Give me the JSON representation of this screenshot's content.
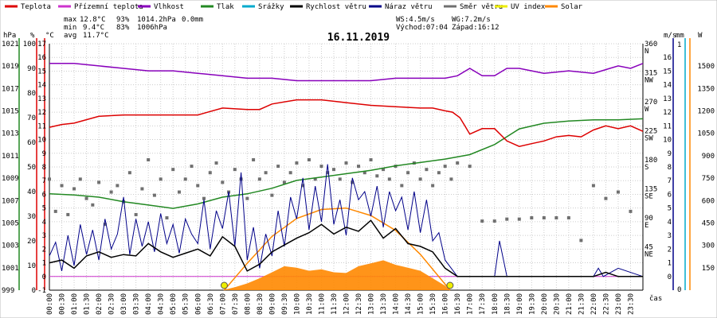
{
  "chart_data": {
    "type": "line",
    "title": "16.11.2019",
    "legend": {
      "placement": "top",
      "items": [
        {
          "label": "Teplota",
          "color": "#dd0000"
        },
        {
          "label": "Přízemní teplota",
          "color": "#cc33cc"
        },
        {
          "label": "Vlhkost",
          "color": "#8800bb"
        },
        {
          "label": "Tlak",
          "color": "#228822"
        },
        {
          "label": "Srážky",
          "color": "#00aacc"
        },
        {
          "label": "Rychlost větru",
          "color": "#000000"
        },
        {
          "label": "Náraz větru",
          "color": "#000088"
        },
        {
          "label": "Směr větru",
          "color": "#707070"
        },
        {
          "label": "UV index",
          "color": "#eeee00"
        },
        {
          "label": "Solar",
          "color": "#ff8800"
        }
      ]
    },
    "stats": {
      "max": {
        "label": "max",
        "temp": "12.8°C",
        "hum": "93%",
        "press": "1014.2hPa",
        "rain": "0.0mm"
      },
      "min": {
        "label": "min",
        "temp": "9.4°C",
        "hum": "83%",
        "press": "1006hPa"
      },
      "avg": {
        "label": "avg",
        "temp": "11.7°C"
      },
      "ws": "WS:4.5m/s",
      "wg": "WG:7.2m/s",
      "sunrise": "Východ:07:04",
      "sunset": "Západ:16:12"
    },
    "axes": {
      "hpa": {
        "unit": "hPa",
        "ticks": [
          "1021",
          "1019",
          "1017",
          "1015",
          "1013",
          "1011",
          "1009",
          "1007",
          "1005",
          "1003",
          "1001",
          "999"
        ]
      },
      "pct": {
        "unit": "%",
        "ticks": [
          "100",
          "90",
          "80",
          "70",
          "60",
          "50",
          "40",
          "30",
          "20",
          "10",
          "0"
        ]
      },
      "degc": {
        "unit": "°C",
        "ticks": [
          "17",
          "16",
          "15",
          "14",
          "13",
          "12",
          "11",
          "10",
          "9",
          "8",
          "7",
          "6",
          "5",
          "4",
          "3",
          "2",
          "1",
          "0",
          "-1"
        ]
      },
      "dir": {
        "ticks": [
          "360",
          "315",
          "270",
          "225",
          "180",
          "135",
          "90",
          "45"
        ],
        "cardinal": [
          "N",
          "NW",
          "W",
          "SW",
          "S",
          "SE",
          "E",
          "NE"
        ]
      },
      "ms": {
        "unit": "m/s",
        "ticks": [
          "16",
          "15",
          "14",
          "13",
          "12",
          "11",
          "10",
          "9",
          "8",
          "7",
          "6",
          "5",
          "4",
          "3",
          "2",
          "1",
          "0"
        ]
      },
      "mm": {
        "unit": "mm",
        "ticks": [
          "1",
          "0"
        ]
      },
      "watt": {
        "unit": "W",
        "ticks": [
          "1500",
          "1350",
          "1200",
          "1050",
          "900",
          "750",
          "600",
          "450",
          "300",
          "150"
        ]
      },
      "time": {
        "unit": "čas",
        "ticks": [
          "00:00",
          "00:30",
          "01:00",
          "01:30",
          "02:00",
          "02:30",
          "03:00",
          "03:30",
          "04:00",
          "04:30",
          "05:00",
          "05:30",
          "06:00",
          "06:30",
          "07:00",
          "07:30",
          "08:00",
          "08:30",
          "09:00",
          "09:30",
          "10:00",
          "10:30",
          "11:00",
          "11:30",
          "12:00",
          "12:30",
          "13:00",
          "13:30",
          "14:00",
          "14:30",
          "15:00",
          "15:30",
          "16:00",
          "16:30",
          "17:00",
          "17:30",
          "18:00",
          "18:30",
          "19:00",
          "19:30",
          "20:00",
          "20:30",
          "21:00",
          "21:30",
          "22:00",
          "22:30",
          "23:00",
          "23:30"
        ]
      }
    },
    "x_range_hours": [
      0,
      24
    ],
    "series": [
      {
        "name": "Teplota",
        "unit": "°C",
        "x": [
          0,
          0.5,
          1,
          2,
          3,
          4,
          5,
          6,
          7,
          8,
          8.5,
          9,
          10,
          11,
          12,
          13,
          14,
          15,
          15.5,
          16,
          16.3,
          16.6,
          16.8,
          17,
          17.5,
          18,
          18.5,
          19,
          19.5,
          20,
          20.5,
          21,
          21.5,
          22,
          22.5,
          23,
          23.5,
          24
        ],
        "values": [
          10.9,
          11.1,
          11.2,
          11.7,
          11.8,
          11.8,
          11.8,
          11.8,
          12.3,
          12.2,
          12.2,
          12.6,
          12.9,
          12.9,
          12.7,
          12.5,
          12.4,
          12.3,
          12.3,
          12.1,
          12.0,
          11.6,
          11.0,
          10.4,
          10.8,
          10.8,
          9.9,
          9.5,
          9.7,
          9.9,
          10.2,
          10.3,
          10.2,
          10.7,
          11.0,
          10.8,
          11.0,
          10.6
        ]
      },
      {
        "name": "Vlhkost",
        "unit": "%",
        "x": [
          0,
          1,
          2,
          3,
          4,
          5,
          6,
          7,
          8,
          9,
          10,
          11,
          12,
          13,
          14,
          15,
          16,
          16.5,
          17,
          17.5,
          18,
          18.5,
          19,
          19.5,
          20,
          21,
          22,
          23,
          23.5,
          24
        ],
        "values": [
          92,
          92,
          91,
          90,
          89,
          89,
          88,
          87,
          86,
          86,
          85,
          85,
          85,
          85,
          86,
          86,
          86,
          87,
          90,
          87,
          87,
          90,
          90,
          89,
          88,
          89,
          88,
          91,
          90,
          92
        ]
      },
      {
        "name": "Tlak",
        "unit": "hPa",
        "x": [
          0,
          1,
          2,
          3,
          4,
          5,
          6,
          7,
          8,
          9,
          10,
          11,
          12,
          13,
          14,
          15,
          16,
          17,
          18,
          19,
          20,
          21,
          22,
          23,
          24
        ],
        "values": [
          1007.6,
          1007.5,
          1007.3,
          1006.9,
          1006.6,
          1006.3,
          1006.7,
          1007.3,
          1007.6,
          1008.1,
          1008.8,
          1009.1,
          1009.4,
          1009.7,
          1010.1,
          1010.4,
          1010.7,
          1011.1,
          1012.0,
          1013.4,
          1013.9,
          1014.1,
          1014.2,
          1014.2,
          1014.3
        ]
      },
      {
        "name": "Rychlost větru",
        "unit": "m/s",
        "x": [
          0,
          0.5,
          1,
          1.5,
          2,
          2.5,
          3,
          3.5,
          4,
          4.5,
          5,
          5.5,
          6,
          6.5,
          7,
          7.5,
          8,
          8.5,
          9,
          9.5,
          10,
          10.5,
          11,
          11.5,
          12,
          12.5,
          13,
          13.5,
          14,
          14.5,
          15,
          15.5,
          16,
          16.5,
          17,
          22,
          22.5,
          23,
          24
        ],
        "values": [
          1.0,
          1.2,
          0.6,
          1.5,
          1.8,
          1.4,
          1.6,
          1.5,
          2.4,
          1.8,
          1.4,
          1.7,
          2.0,
          1.5,
          2.9,
          2.2,
          0.4,
          0.9,
          1.8,
          2.3,
          2.8,
          3.2,
          3.8,
          3.1,
          3.6,
          3.3,
          4.1,
          2.8,
          3.5,
          2.4,
          2.2,
          1.8,
          0.6,
          0.0,
          0.0,
          0.0,
          0.3,
          0.0,
          0.0
        ]
      },
      {
        "name": "Náraz větru",
        "unit": "m/s",
        "x": [
          0,
          0.25,
          0.5,
          0.75,
          1,
          1.25,
          1.5,
          1.75,
          2,
          2.25,
          2.5,
          2.75,
          3,
          3.25,
          3.5,
          3.75,
          4,
          4.25,
          4.5,
          4.75,
          5,
          5.25,
          5.5,
          5.75,
          6,
          6.25,
          6.5,
          6.75,
          7,
          7.25,
          7.5,
          7.75,
          8,
          8.25,
          8.5,
          8.75,
          9,
          9.25,
          9.5,
          9.75,
          10,
          10.25,
          10.5,
          10.75,
          11,
          11.25,
          11.5,
          11.75,
          12,
          12.25,
          12.5,
          12.75,
          13,
          13.25,
          13.5,
          13.75,
          14,
          14.25,
          14.5,
          14.75,
          15,
          15.25,
          15.5,
          15.75,
          16,
          16.25,
          16.5,
          17,
          18,
          18.2,
          18.5,
          22,
          22.2,
          22.4,
          23,
          24
        ],
        "values": [
          1.5,
          2.5,
          0.4,
          3.0,
          0.8,
          3.8,
          1.6,
          3.4,
          1.2,
          4.2,
          2.0,
          3.1,
          5.8,
          1.6,
          4.2,
          2.2,
          4.0,
          1.8,
          4.6,
          2.4,
          3.8,
          1.7,
          4.2,
          3.1,
          2.4,
          5.6,
          2.0,
          4.8,
          3.5,
          6.2,
          2.2,
          7.6,
          1.2,
          3.6,
          0.6,
          3.1,
          1.5,
          4.8,
          2.2,
          5.8,
          4.2,
          7.2,
          3.4,
          6.6,
          4.0,
          8.2,
          3.8,
          5.6,
          3.0,
          7.2,
          5.6,
          6.2,
          4.4,
          6.6,
          3.6,
          6.2,
          4.8,
          5.8,
          3.4,
          6.2,
          3.2,
          5.6,
          2.6,
          3.2,
          1.2,
          0.6,
          0.0,
          0.0,
          0.0,
          2.6,
          0.0,
          0.0,
          0.6,
          0.0,
          0.6,
          0.0
        ]
      },
      {
        "name": "Směr větru",
        "unit": "°",
        "x": [
          0,
          0.25,
          0.5,
          0.75,
          1,
          1.25,
          1.5,
          1.75,
          2,
          2.25,
          2.5,
          2.75,
          3,
          3.25,
          3.5,
          3.75,
          4,
          4.25,
          4.5,
          4.75,
          5,
          5.25,
          5.5,
          5.75,
          6,
          6.25,
          6.5,
          6.75,
          7,
          7.25,
          7.5,
          7.75,
          8,
          8.25,
          8.5,
          8.75,
          9,
          9.25,
          9.5,
          9.75,
          10,
          10.25,
          10.5,
          10.75,
          11,
          11.25,
          11.5,
          11.75,
          12,
          12.25,
          12.5,
          12.75,
          13,
          13.25,
          13.5,
          13.75,
          14,
          14.25,
          14.5,
          14.75,
          15,
          15.25,
          15.5,
          15.75,
          16,
          16.25,
          16.5,
          17,
          17.5,
          18,
          18.5,
          19,
          19.5,
          20,
          20.5,
          21,
          21.5,
          22,
          22.5,
          23,
          23.5
        ],
        "values": [
          150,
          100,
          140,
          95,
          135,
          150,
          120,
          110,
          145,
          80,
          130,
          140,
          115,
          160,
          95,
          135,
          180,
          125,
          150,
          90,
          165,
          130,
          150,
          170,
          140,
          120,
          160,
          175,
          145,
          130,
          165,
          150,
          120,
          180,
          150,
          160,
          125,
          170,
          145,
          160,
          175,
          140,
          180,
          150,
          170,
          160,
          165,
          150,
          175,
          145,
          170,
          160,
          180,
          155,
          165,
          150,
          170,
          140,
          160,
          175,
          150,
          165,
          140,
          160,
          170,
          150,
          175,
          170,
          85,
          85,
          88,
          88,
          90,
          90,
          90,
          90,
          55,
          140,
          120,
          130,
          100
        ]
      },
      {
        "name": "Solar",
        "unit": "W",
        "x": [
          7.0,
          7.5,
          8.0,
          8.5,
          9.0,
          9.5,
          10.0,
          10.5,
          11.0,
          11.5,
          12.0,
          12.5,
          13.0,
          13.5,
          14.0,
          14.5,
          15.0,
          15.5,
          16.0,
          16.2
        ],
        "values": [
          0,
          20,
          45,
          80,
          120,
          160,
          150,
          130,
          140,
          120,
          115,
          160,
          180,
          200,
          170,
          150,
          130,
          80,
          30,
          0
        ]
      },
      {
        "name": "Solar max",
        "unit": "W",
        "x": [
          7.07,
          8,
          9,
          10,
          11,
          12,
          13,
          14,
          15,
          16.2
        ],
        "values": [
          0,
          180,
          360,
          480,
          540,
          550,
          500,
          400,
          240,
          0
        ]
      }
    ],
    "sun_markers": [
      {
        "label": "Východ",
        "x": 7.07
      },
      {
        "label": "Západ",
        "x": 16.2
      }
    ]
  }
}
